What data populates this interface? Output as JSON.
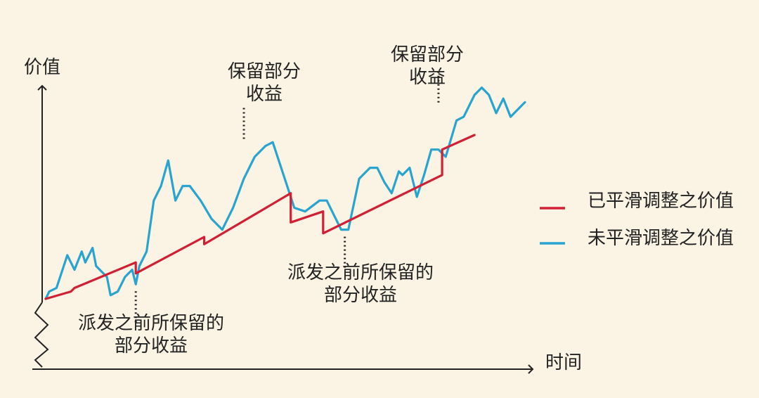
{
  "chart_data": {
    "type": "line",
    "ylabel": "价值",
    "xlabel": "时间",
    "grid": false,
    "legend_position": "right",
    "series": [
      {
        "name": "已平滑调整之价值",
        "color": "#d11f34",
        "points": [
          [
            1,
            1
          ],
          [
            8,
            3
          ],
          [
            9,
            4
          ],
          [
            26,
            11
          ],
          [
            26,
            8
          ],
          [
            45,
            18
          ],
          [
            45,
            16
          ],
          [
            69,
            30
          ],
          [
            69,
            22
          ],
          [
            78,
            25
          ],
          [
            78,
            19
          ],
          [
            111,
            35
          ],
          [
            111,
            42
          ],
          [
            120,
            46
          ]
        ]
      },
      {
        "name": "未平滑调整之价值",
        "color": "#28a4cf",
        "points": [
          [
            1,
            1
          ],
          [
            2,
            3
          ],
          [
            4,
            4
          ],
          [
            7,
            13
          ],
          [
            9,
            9
          ],
          [
            11,
            14
          ],
          [
            12,
            11
          ],
          [
            14,
            15
          ],
          [
            15,
            10
          ],
          [
            18,
            7
          ],
          [
            19,
            2
          ],
          [
            21,
            3
          ],
          [
            23,
            7
          ],
          [
            25,
            9
          ],
          [
            26,
            5
          ],
          [
            27,
            10
          ],
          [
            29,
            14
          ],
          [
            31,
            28
          ],
          [
            33,
            32
          ],
          [
            35,
            39
          ],
          [
            37,
            28
          ],
          [
            39,
            32
          ],
          [
            41,
            32
          ],
          [
            44,
            28
          ],
          [
            47,
            23
          ],
          [
            50,
            20
          ],
          [
            53,
            26
          ],
          [
            56,
            34
          ],
          [
            59,
            40
          ],
          [
            62,
            43
          ],
          [
            64,
            44
          ],
          [
            68,
            32
          ],
          [
            70,
            26
          ],
          [
            73,
            25
          ],
          [
            77,
            28
          ],
          [
            79,
            28
          ],
          [
            81,
            24
          ],
          [
            83,
            20
          ],
          [
            85,
            20
          ],
          [
            88,
            34
          ],
          [
            91,
            37
          ],
          [
            93,
            37
          ],
          [
            95,
            33
          ],
          [
            97,
            30
          ],
          [
            99,
            36
          ],
          [
            100,
            35
          ],
          [
            102,
            37
          ],
          [
            104,
            29
          ],
          [
            106,
            35
          ],
          [
            108,
            42
          ],
          [
            110,
            42
          ],
          [
            112,
            40
          ],
          [
            115,
            50
          ],
          [
            117,
            51
          ],
          [
            120,
            57
          ],
          [
            122,
            59
          ],
          [
            124,
            57
          ],
          [
            126,
            52
          ],
          [
            128,
            56
          ],
          [
            130,
            51
          ],
          [
            132,
            53
          ],
          [
            134,
            55
          ]
        ]
      }
    ],
    "xlim": [
      0,
      138
    ],
    "ylim": [
      -12,
      64
    ],
    "annotations": [
      {
        "lines": [
          "派发之前所保留的",
          "部分收益"
        ],
        "x": 26,
        "y": 5
      },
      {
        "lines": [
          "保留部分",
          "收益"
        ],
        "x": 56,
        "y": 43
      },
      {
        "lines": [
          "派发之前所保留的",
          "部分收益"
        ],
        "x": 84,
        "y": 20
      },
      {
        "lines": [
          "保留部分",
          "收益"
        ],
        "x": 110,
        "y": 53
      }
    ]
  }
}
